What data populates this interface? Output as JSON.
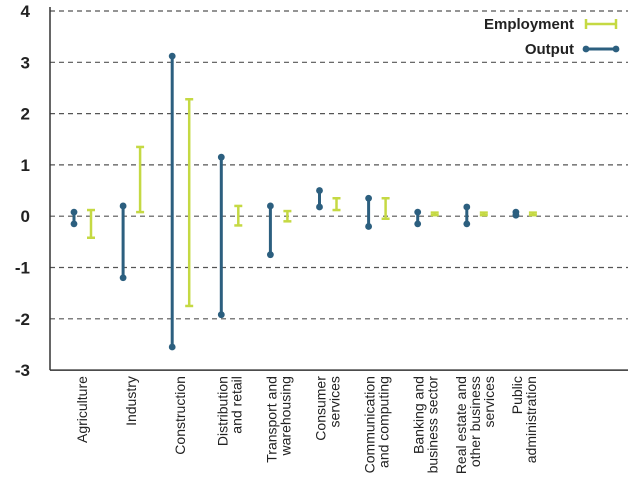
{
  "chart_data": {
    "type": "range",
    "ylim": [
      -3,
      4
    ],
    "yticks": [
      "4",
      "3",
      "2",
      "1",
      "0",
      "-1",
      "-2",
      "-3"
    ],
    "ytick_values": [
      4,
      3,
      2,
      1,
      0,
      -1,
      -2,
      -3
    ],
    "grid": "dashed horizontal",
    "legend_position": "top-right",
    "categories": [
      [
        "Agriculture"
      ],
      [
        "Industry"
      ],
      [
        "Construction"
      ],
      [
        "Distribution",
        "and retail"
      ],
      [
        "Transport and",
        "warehousing"
      ],
      [
        "Consumer",
        "services"
      ],
      [
        "Communication",
        "and computing"
      ],
      [
        "Banking and",
        "business sector"
      ],
      [
        "Real estate and",
        "other business",
        "services"
      ],
      [
        "Public",
        "administration"
      ]
    ],
    "series": [
      {
        "name": "Employment",
        "color": "#c5d943",
        "ranges": [
          [
            -0.42,
            0.12
          ],
          [
            0.08,
            1.35
          ],
          [
            -1.75,
            2.28
          ],
          [
            -0.18,
            0.2
          ],
          [
            -0.1,
            0.1
          ],
          [
            0.12,
            0.35
          ],
          [
            -0.05,
            0.35
          ],
          [
            0.02,
            0.07
          ],
          [
            0.02,
            0.07
          ],
          [
            0.02,
            0.07
          ]
        ]
      },
      {
        "name": "Output",
        "color": "#2c5f7f",
        "ranges": [
          [
            -0.15,
            0.08
          ],
          [
            -1.2,
            0.2
          ],
          [
            -2.55,
            3.12
          ],
          [
            -1.92,
            1.15
          ],
          [
            -0.75,
            0.2
          ],
          [
            0.18,
            0.5
          ],
          [
            -0.2,
            0.35
          ],
          [
            -0.15,
            0.08
          ],
          [
            -0.15,
            0.18
          ],
          [
            0.02,
            0.08
          ]
        ]
      }
    ]
  }
}
